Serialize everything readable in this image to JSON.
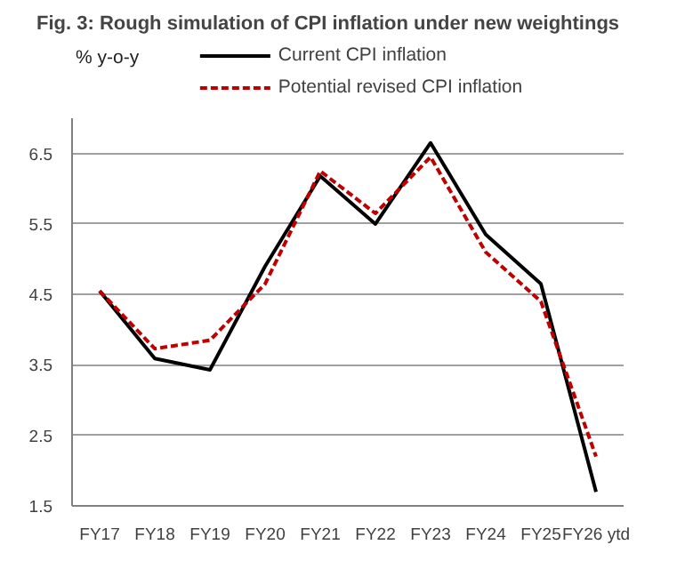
{
  "chart_data": {
    "type": "line",
    "title": "Fig. 3: Rough simulation of CPI inflation under new weightings",
    "ylabel": "% y-o-y",
    "categories": [
      "FY17",
      "FY18",
      "FY19",
      "FY20",
      "FY21",
      "FY22",
      "FY23",
      "FY24",
      "FY25",
      "FY26 ytd"
    ],
    "series": [
      {
        "name": "Current CPI inflation",
        "color": "#000000",
        "line_style": "solid",
        "values": [
          4.55,
          3.59,
          3.43,
          4.9,
          6.18,
          5.5,
          6.65,
          5.35,
          4.65,
          1.7
        ]
      },
      {
        "name": "Potential revised CPI inflation",
        "color": "#c00000",
        "line_style": "dashed",
        "values": [
          4.55,
          3.73,
          3.85,
          4.65,
          6.25,
          5.65,
          6.45,
          5.1,
          4.4,
          2.2
        ]
      }
    ],
    "ylim": [
      1.5,
      7.0
    ],
    "yticks": [
      1.5,
      2.5,
      3.5,
      4.5,
      5.5,
      6.5
    ],
    "grid": "y",
    "legend": "top",
    "marker": "none"
  }
}
